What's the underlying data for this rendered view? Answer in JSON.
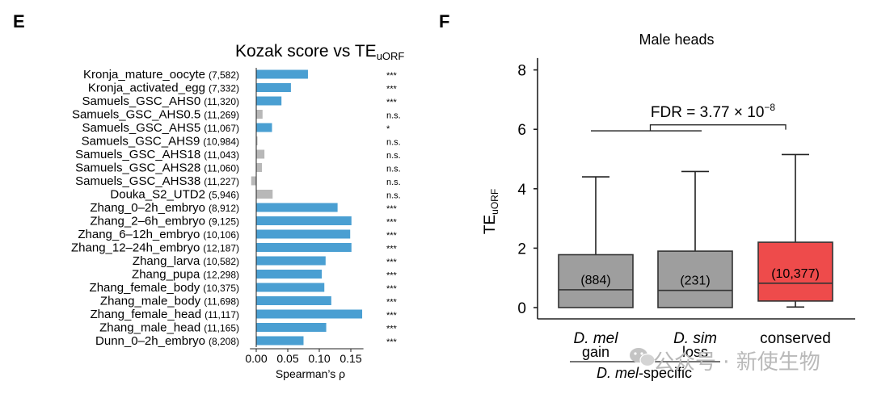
{
  "panel_e": {
    "letter": "E",
    "chart_data": {
      "type": "bar",
      "orientation": "horizontal",
      "title_main": "Kozak score vs TE",
      "title_sub": "uORF",
      "xlabel": "Spearman’s ρ",
      "xlim": [
        -0.01,
        0.17
      ],
      "xticks": [
        0.0,
        0.05,
        0.1,
        0.15
      ],
      "xtick_labels": [
        "0.00",
        "0.05",
        "0.10",
        "0.15"
      ],
      "colors": {
        "significant": "#4a9fd2",
        "not_significant": "#b8b8b8"
      },
      "rows": [
        {
          "name": "Kronja_mature_oocyte",
          "n": "(7,582)",
          "value": 0.082,
          "sig": "***",
          "significant": true
        },
        {
          "name": "Kronja_activated_egg",
          "n": "(7,332)",
          "value": 0.055,
          "sig": "***",
          "significant": true
        },
        {
          "name": "Samuels_GSC_AHS0",
          "n": "(11,320)",
          "value": 0.04,
          "sig": "***",
          "significant": true
        },
        {
          "name": "Samuels_GSC_AHS0.5",
          "n": "(11,269)",
          "value": 0.01,
          "sig": "n.s.",
          "significant": false
        },
        {
          "name": "Samuels_GSC_AHS5",
          "n": "(11,067)",
          "value": 0.025,
          "sig": "*",
          "significant": true
        },
        {
          "name": "Samuels_GSC_AHS9",
          "n": "(10,984)",
          "value": 0.002,
          "sig": "n.s.",
          "significant": false
        },
        {
          "name": "Samuels_GSC_AHS18",
          "n": "(11,043)",
          "value": 0.013,
          "sig": "n.s.",
          "significant": false
        },
        {
          "name": "Samuels_GSC_AHS28",
          "n": "(11,060)",
          "value": 0.009,
          "sig": "n.s.",
          "significant": false
        },
        {
          "name": "Samuels_GSC_AHS38",
          "n": "(11,227)",
          "value": -0.008,
          "sig": "n.s.",
          "significant": false
        },
        {
          "name": "Douka_S2_UTD2",
          "n": "(5,946)",
          "value": 0.026,
          "sig": "n.s.",
          "significant": false
        },
        {
          "name": "Zhang_0–2h_embryo",
          "n": "(8,912)",
          "value": 0.129,
          "sig": "***",
          "significant": true
        },
        {
          "name": "Zhang_2–6h_embryo",
          "n": "(9,125)",
          "value": 0.151,
          "sig": "***",
          "significant": true
        },
        {
          "name": "Zhang_6–12h_embryo",
          "n": "(10,106)",
          "value": 0.149,
          "sig": "***",
          "significant": true
        },
        {
          "name": "Zhang_12–24h_embryo",
          "n": "(12,187)",
          "value": 0.151,
          "sig": "***",
          "significant": true
        },
        {
          "name": "Zhang_larva",
          "n": "(10,582)",
          "value": 0.11,
          "sig": "***",
          "significant": true
        },
        {
          "name": "Zhang_pupa",
          "n": "(12,298)",
          "value": 0.104,
          "sig": "***",
          "significant": true
        },
        {
          "name": "Zhang_female_body",
          "n": "(10,375)",
          "value": 0.108,
          "sig": "***",
          "significant": true
        },
        {
          "name": "Zhang_male_body",
          "n": "(11,698)",
          "value": 0.119,
          "sig": "***",
          "significant": true
        },
        {
          "name": "Zhang_female_head",
          "n": "(11,117)",
          "value": 0.168,
          "sig": "***",
          "significant": true
        },
        {
          "name": "Zhang_male_head",
          "n": "(11,165)",
          "value": 0.111,
          "sig": "***",
          "significant": true
        },
        {
          "name": "Dunn_0–2h_embryo",
          "n": "(8,208)",
          "value": 0.075,
          "sig": "***",
          "significant": true
        }
      ]
    }
  },
  "panel_f": {
    "letter": "F",
    "chart_data": {
      "type": "boxplot",
      "title": "Male heads",
      "ylabel_main": "TE",
      "ylabel_sub": "uORF",
      "ylim": [
        0,
        8.4
      ],
      "yticks": [
        0,
        2,
        4,
        6,
        8
      ],
      "ytick_labels": [
        "0",
        "2",
        "4",
        "6",
        "8"
      ],
      "annotation_prefix": "FDR = 3.77 × 10",
      "annotation_exp": "−8",
      "group_label_main": "D. mel",
      "group_label_suffix": "-specific",
      "boxes": [
        {
          "label_top": "D. mel",
          "label_bottom": "gain",
          "count": "(884)",
          "min": 0,
          "q1": 0,
          "median": 0.6,
          "q3": 1.78,
          "max": 4.4,
          "color": "#9e9e9e"
        },
        {
          "label_top": "D. sim",
          "label_bottom": "loss",
          "count": "(231)",
          "min": 0,
          "q1": 0,
          "median": 0.58,
          "q3": 1.9,
          "max": 4.58,
          "color": "#9e9e9e"
        },
        {
          "label_top": "",
          "label_bottom": "conserved",
          "count": "(10,377)",
          "min": 0.02,
          "q1": 0.22,
          "median": 0.82,
          "q3": 2.2,
          "max": 5.15,
          "color": "#ee4b4b"
        }
      ]
    }
  },
  "watermark": {
    "text": "公众号 · 新使生物",
    "icon": "wechat-icon"
  }
}
